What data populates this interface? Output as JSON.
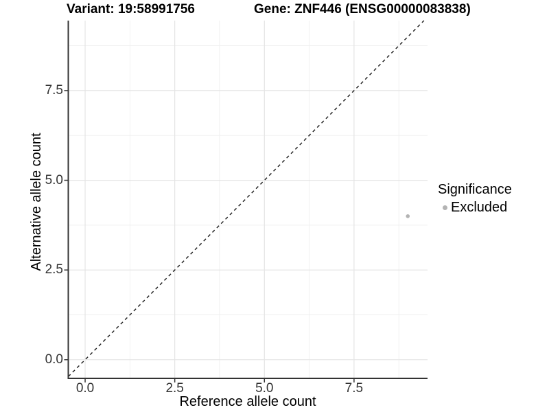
{
  "header": {
    "variant_title": "Variant: 19:58991756",
    "gene_title": "Gene: ZNF446 (ENSG00000083838)"
  },
  "legend": {
    "title": "Significance",
    "entries": [
      {
        "label": "Excluded",
        "color": "#b3b3b3"
      }
    ]
  },
  "chart_data": {
    "type": "scatter",
    "title": "Variant: 19:58991756  Gene: ZNF446 (ENSG00000083838)",
    "xlabel": "Reference allele count",
    "ylabel": "Alternative allele count",
    "x_ticks": [
      0,
      2.5,
      5,
      7.5
    ],
    "y_ticks": [
      0,
      2.5,
      5,
      7.5
    ],
    "x_tick_labels": [
      "0.0",
      "2.5",
      "5.0",
      "7.5"
    ],
    "y_tick_labels": [
      "0.0",
      "2.5",
      "5.0",
      "7.5"
    ],
    "x_minor_ticks": [
      1.25,
      3.75,
      6.25,
      8.75
    ],
    "y_minor_ticks": [
      1.25,
      3.75,
      6.25,
      8.75
    ],
    "xlim": [
      -0.47,
      9.55
    ],
    "ylim": [
      -0.52,
      9.45
    ],
    "grid": true,
    "legend_position": "right",
    "series": [
      {
        "name": "Excluded",
        "color": "#b3b3b3",
        "points": [
          {
            "x": 9,
            "y": 4
          }
        ]
      }
    ],
    "identity_line": {
      "equation": "y = x",
      "style": "dashed",
      "color": "#1a1a1a"
    },
    "colors": {
      "grid_major": "#e4e4e4",
      "grid_minor": "#efefef",
      "axis_line": "#333333",
      "tick_mark": "#333333",
      "background": "#ffffff"
    }
  }
}
